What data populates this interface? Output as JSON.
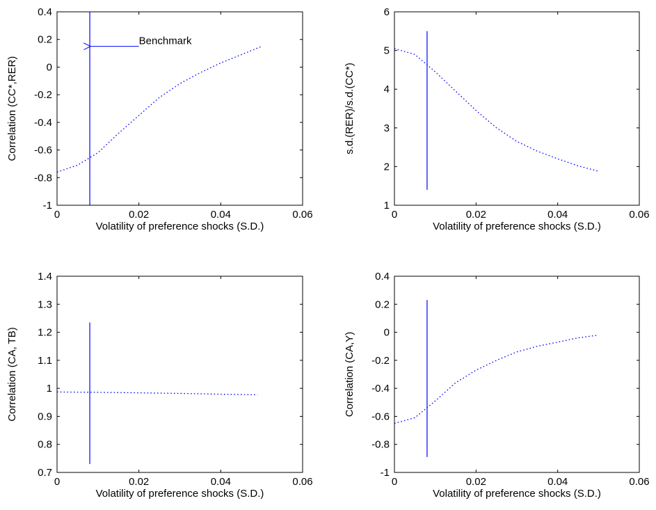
{
  "chart_data": [
    {
      "type": "line",
      "xlabel": "Volatility of preference shocks (S.D.)",
      "ylabel": "Correlation (CC*,RER)",
      "xlim": [
        0,
        0.06
      ],
      "ylim": [
        -1,
        0.4
      ],
      "xticks": [
        "0",
        "0.02",
        "0.04",
        "0.06"
      ],
      "yticks": [
        "-1",
        "-0.8",
        "-0.6",
        "-0.4",
        "-0.2",
        "0",
        "0.2",
        "0.4"
      ],
      "grid": false,
      "series": [
        {
          "style": "dotted",
          "color": "#0000ff",
          "x": [
            0,
            0.005,
            0.01,
            0.015,
            0.02,
            0.025,
            0.03,
            0.035,
            0.04,
            0.045,
            0.05
          ],
          "y": [
            -0.76,
            -0.71,
            -0.62,
            -0.48,
            -0.35,
            -0.22,
            -0.12,
            -0.04,
            0.03,
            0.09,
            0.15
          ]
        }
      ],
      "vline": {
        "x": 0.008,
        "y_range": [
          -1,
          0.4
        ],
        "color": "#0000ff"
      },
      "annotation": {
        "text": "Benchmark",
        "arrow_to": [
          0.008,
          0.15
        ],
        "text_at": [
          0.02,
          0.15
        ]
      }
    },
    {
      "type": "line",
      "xlabel": "Volatility of preference shocks (S.D.)",
      "ylabel": "s.d.(RER)/s.d.(CC*)",
      "xlim": [
        0,
        0.06
      ],
      "ylim": [
        1,
        6
      ],
      "xticks": [
        "0",
        "0.02",
        "0.04",
        "0.06"
      ],
      "yticks": [
        "1",
        "2",
        "3",
        "4",
        "5",
        "6"
      ],
      "grid": false,
      "series": [
        {
          "style": "dotted",
          "color": "#0000ff",
          "x": [
            0,
            0.005,
            0.01,
            0.015,
            0.02,
            0.025,
            0.03,
            0.035,
            0.04,
            0.045,
            0.05
          ],
          "y": [
            5.05,
            4.9,
            4.45,
            3.95,
            3.45,
            3.0,
            2.65,
            2.4,
            2.2,
            2.02,
            1.88
          ]
        }
      ],
      "vline": {
        "x": 0.008,
        "y_range": [
          1.4,
          5.5
        ],
        "color": "#0000ff"
      }
    },
    {
      "type": "line",
      "xlabel": "Volatility of preference shocks (S.D.)",
      "ylabel": "Correlation (CA, TB)",
      "xlim": [
        0,
        0.06
      ],
      "ylim": [
        0.7,
        1.4
      ],
      "xticks": [
        "0",
        "0.02",
        "0.04",
        "0.06"
      ],
      "yticks": [
        "0.7",
        "0.8",
        "0.9",
        "1",
        "1.1",
        "1.2",
        "1.3",
        "1.4"
      ],
      "grid": false,
      "series": [
        {
          "style": "dotted",
          "color": "#0000ff",
          "x": [
            0,
            0.01,
            0.02,
            0.03,
            0.04,
            0.049
          ],
          "y": [
            0.987,
            0.986,
            0.984,
            0.982,
            0.979,
            0.977
          ]
        }
      ],
      "vline": {
        "x": 0.008,
        "y_range": [
          0.73,
          1.235
        ],
        "color": "#0000ff"
      }
    },
    {
      "type": "line",
      "xlabel": "Volatility of preference shocks (S.D.)",
      "ylabel": "Correlation (CA,Y)",
      "xlim": [
        0,
        0.06
      ],
      "ylim": [
        -1,
        0.4
      ],
      "xticks": [
        "0",
        "0.02",
        "0.04",
        "0.06"
      ],
      "yticks": [
        "-1",
        "-0.8",
        "-0.6",
        "-0.4",
        "-0.2",
        "0",
        "0.2",
        "0.4"
      ],
      "grid": false,
      "series": [
        {
          "style": "dotted",
          "color": "#0000ff",
          "x": [
            0,
            0.005,
            0.01,
            0.015,
            0.02,
            0.025,
            0.03,
            0.035,
            0.04,
            0.045,
            0.05
          ],
          "y": [
            -0.65,
            -0.61,
            -0.49,
            -0.36,
            -0.27,
            -0.2,
            -0.14,
            -0.1,
            -0.07,
            -0.04,
            -0.02
          ]
        }
      ],
      "vline": {
        "x": 0.008,
        "y_range": [
          -0.89,
          0.23
        ],
        "color": "#0000ff"
      }
    }
  ]
}
